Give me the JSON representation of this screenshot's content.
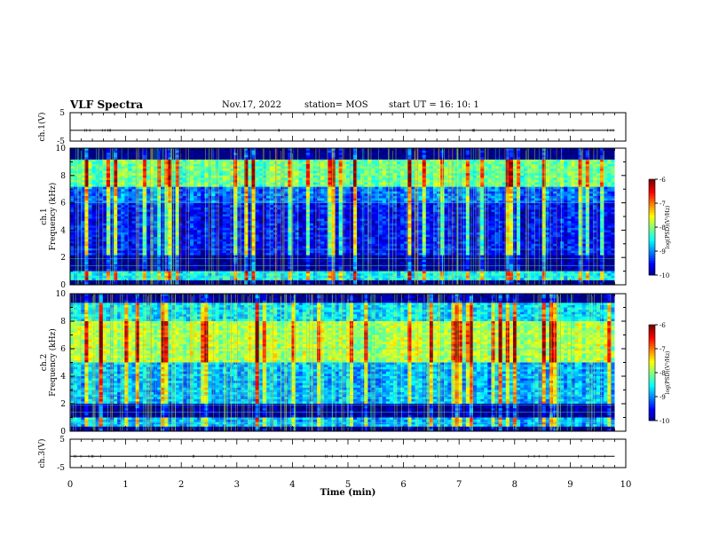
{
  "header": {
    "title": "VLF Spectra",
    "date": "Nov.17, 2022",
    "station": "station= MOS",
    "start": "start  UT =   16: 10: 1"
  },
  "chart_data": [
    {
      "type": "line",
      "panel": "ch1-voltage",
      "ylabel": "ch.1(V)",
      "ylim": [
        -5,
        5
      ],
      "yticks": [
        "5",
        "-5"
      ],
      "series": [
        {
          "values": [
            -1.2,
            -1.2
          ]
        }
      ]
    },
    {
      "type": "heatmap",
      "panel": "ch1-spectrogram",
      "ylabel": "ch.1 Frequency (kHz)",
      "ylim": [
        0,
        10
      ],
      "yticks": [
        "0",
        "2",
        "4",
        "6",
        "8",
        "10"
      ],
      "xlim": [
        0,
        9.8
      ],
      "colorbar": {
        "label": "log(PSD)(V²/Hz)",
        "ticks": [
          "-6",
          "-7",
          "-8",
          "-9",
          "-10"
        ],
        "range": [
          -10,
          -6
        ]
      },
      "bands_khz": [
        {
          "from": 0.0,
          "to": 0.3,
          "level": -10
        },
        {
          "from": 0.3,
          "to": 1.0,
          "level": -8.3
        },
        {
          "from": 1.0,
          "to": 2.2,
          "level": -9.9
        },
        {
          "from": 2.2,
          "to": 6.0,
          "level": -9.3
        },
        {
          "from": 6.0,
          "to": 7.2,
          "level": -8.9
        },
        {
          "from": 7.2,
          "to": 9.2,
          "level": -7.9
        },
        {
          "from": 9.2,
          "to": 10.0,
          "level": -10
        }
      ],
      "seed": 17
    },
    {
      "type": "heatmap",
      "panel": "ch2-spectrogram",
      "ylabel": "ch.2 Frequency (kHz)",
      "ylim": [
        0,
        10
      ],
      "yticks": [
        "0",
        "2",
        "4",
        "6",
        "8",
        "10"
      ],
      "xlim": [
        0,
        9.8
      ],
      "colorbar": {
        "label": "log(PSD)(V²/Hz)",
        "ticks": [
          "-6",
          "-7",
          "-8",
          "-9",
          "-10"
        ],
        "range": [
          -10,
          -6
        ]
      },
      "bands_khz": [
        {
          "from": 0.0,
          "to": 0.3,
          "level": -10
        },
        {
          "from": 0.3,
          "to": 1.0,
          "level": -8.6
        },
        {
          "from": 1.0,
          "to": 2.0,
          "level": -9.9
        },
        {
          "from": 2.0,
          "to": 5.0,
          "level": -8.6
        },
        {
          "from": 5.0,
          "to": 8.0,
          "level": -7.6
        },
        {
          "from": 8.0,
          "to": 9.4,
          "level": -8.4
        },
        {
          "from": 9.4,
          "to": 10.0,
          "level": -9.9
        }
      ],
      "seed": 42
    },
    {
      "type": "line",
      "panel": "ch3-voltage",
      "ylabel": "ch.3(V)",
      "ylim": [
        -5,
        5
      ],
      "yticks": [
        "5",
        "-5"
      ],
      "xlabel": "Time  (min)",
      "xlim": [
        0,
        10
      ],
      "xticks": [
        "0",
        "1",
        "2",
        "3",
        "4",
        "5",
        "6",
        "7",
        "8",
        "9",
        "10"
      ],
      "series": [
        {
          "values": [
            -1.0,
            -1.0
          ]
        }
      ]
    }
  ]
}
